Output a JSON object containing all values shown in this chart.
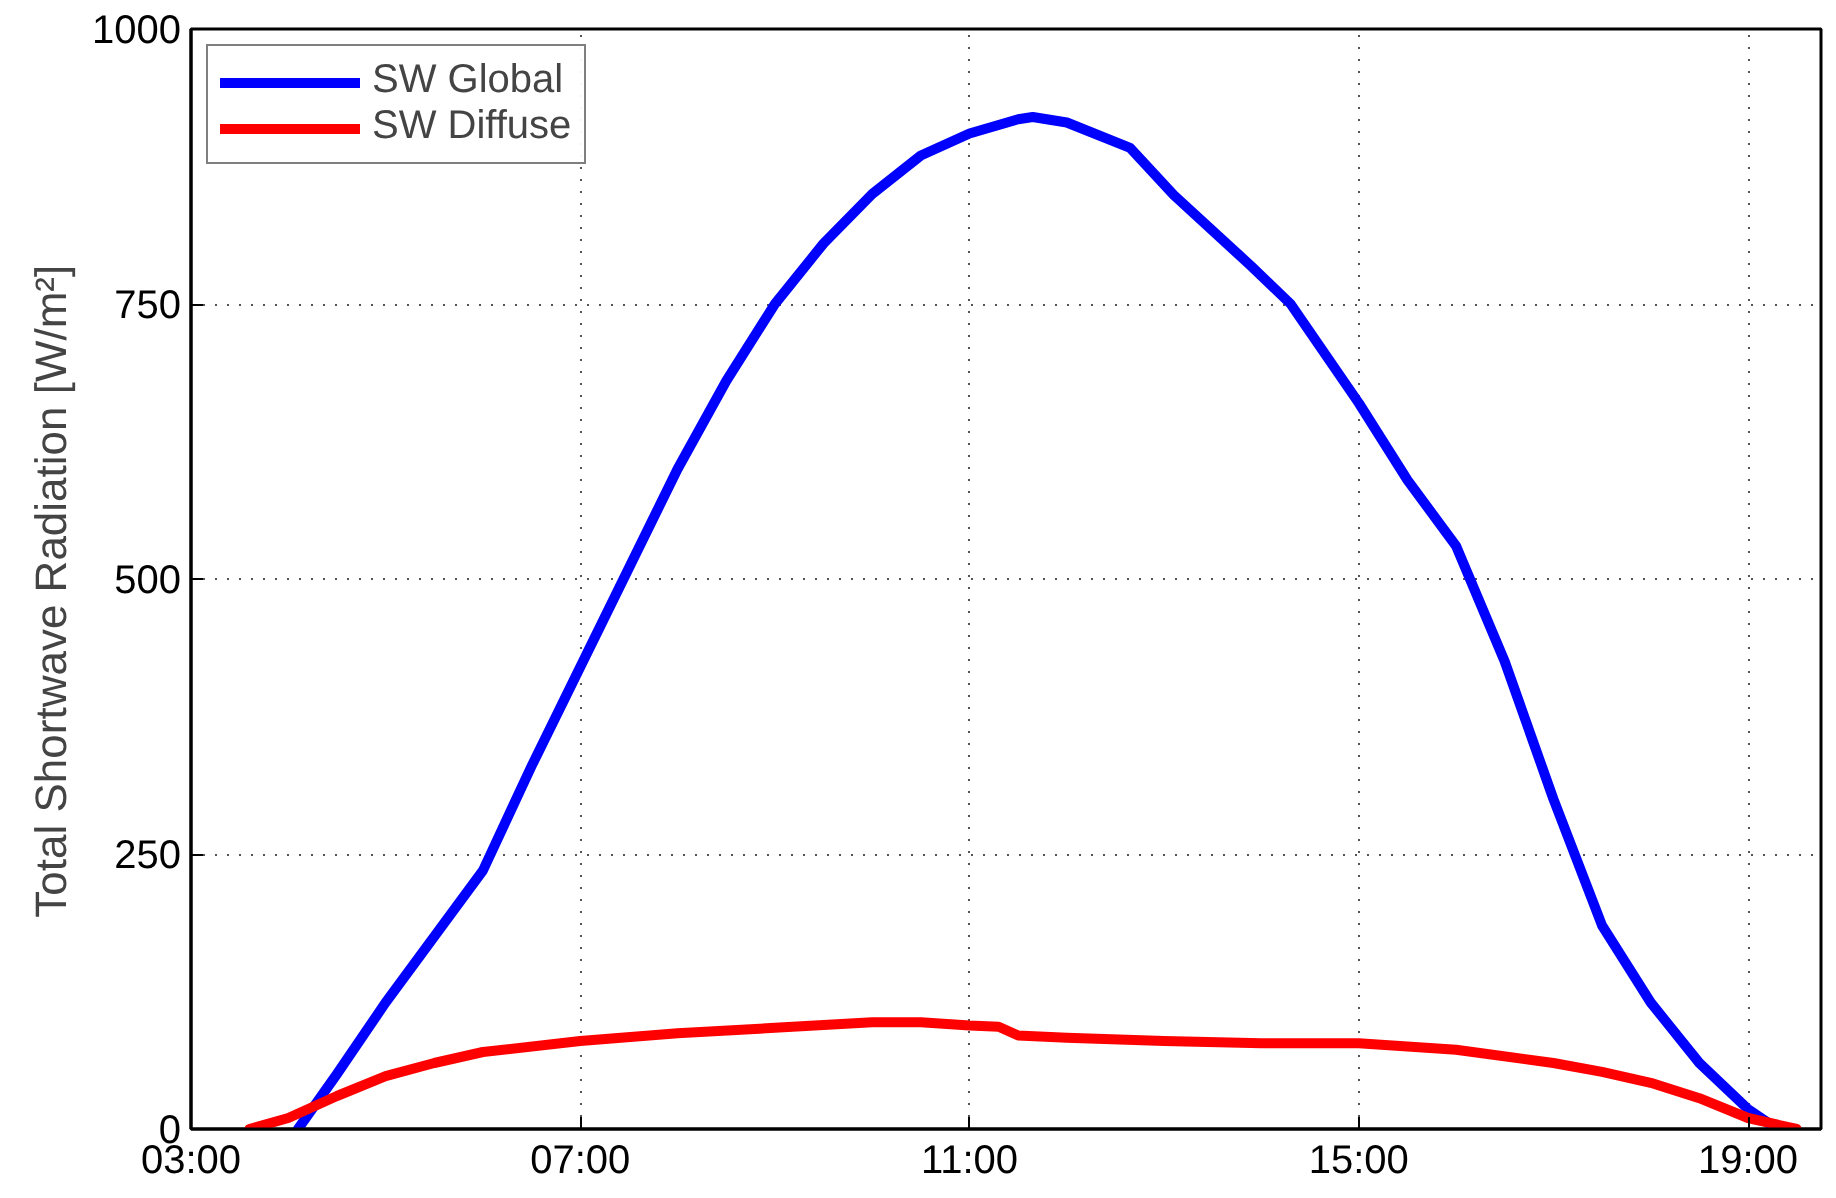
{
  "chart_data": {
    "type": "line",
    "ylabel": "Total Shortwave Radiation   [W/m²]",
    "xlim": [
      3,
      19.75
    ],
    "ylim": [
      0,
      1000
    ],
    "xticks": [
      {
        "value": 3,
        "label": "03:00"
      },
      {
        "value": 7,
        "label": "07:00"
      },
      {
        "value": 11,
        "label": "11:00"
      },
      {
        "value": 15,
        "label": "15:00"
      },
      {
        "value": 19,
        "label": "19:00"
      }
    ],
    "yticks": [
      0,
      250,
      500,
      750,
      1000
    ],
    "grid": true,
    "legend": "top left",
    "line_style": "solid",
    "series": [
      {
        "name": "SW Global",
        "color": "#0000ff",
        "x": [
          4.1,
          4.5,
          5.0,
          5.5,
          6.0,
          6.5,
          7.0,
          7.5,
          8.0,
          8.5,
          9.0,
          9.5,
          10.0,
          10.5,
          11.0,
          11.5,
          11.65,
          12.0,
          12.65,
          13.1,
          13.9,
          14.3,
          15.0,
          15.5,
          16.0,
          16.5,
          17.0,
          17.5,
          18.0,
          18.5,
          19.0,
          19.3
        ],
        "values": [
          0,
          50,
          115,
          175,
          235,
          330,
          420,
          510,
          600,
          680,
          750,
          805,
          850,
          885,
          905,
          918,
          920,
          915,
          892,
          849,
          784,
          750,
          660,
          590,
          530,
          425,
          300,
          185,
          115,
          60,
          18,
          0
        ]
      },
      {
        "name": "SW Diffuse",
        "color": "#ff0000",
        "x": [
          3.6,
          4.0,
          4.5,
          5.0,
          5.5,
          6.0,
          7.0,
          8.0,
          9.0,
          10.0,
          10.5,
          11.0,
          11.3,
          11.5,
          12.0,
          13.0,
          14.0,
          15.0,
          16.0,
          17.0,
          17.5,
          18.0,
          18.5,
          19.0,
          19.5
        ],
        "values": [
          0,
          10,
          30,
          48,
          60,
          70,
          80,
          87,
          92,
          97,
          97,
          94,
          93,
          85,
          83,
          80,
          78,
          78,
          72,
          60,
          52,
          42,
          28,
          10,
          0
        ]
      }
    ]
  }
}
